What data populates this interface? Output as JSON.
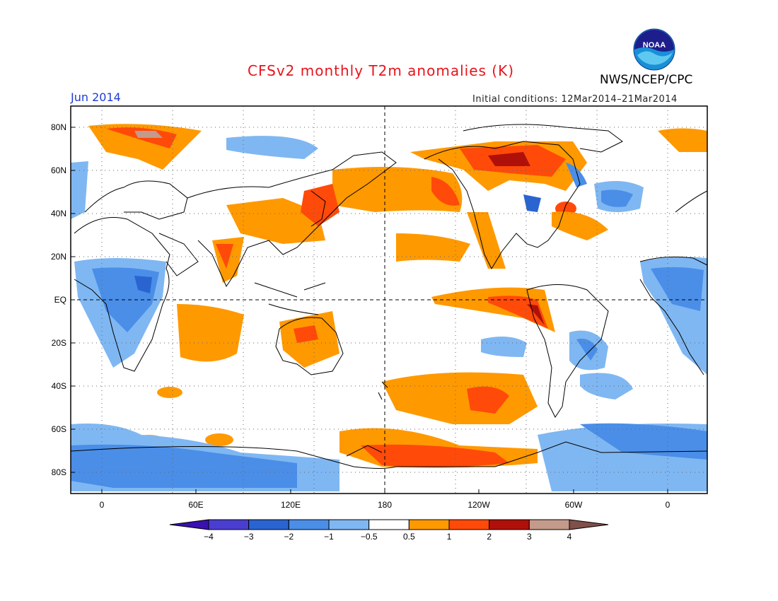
{
  "title": "CFSv2 monthly T2m anomalies (K)",
  "month": "Jun 2014",
  "initial_conditions": "Initial conditions: 12Mar2014–21Mar2014",
  "agency": "NWS/NCEP/CPC",
  "logo_text": "NOAA",
  "logo_icon": "noaa-logo",
  "lat_labels": [
    "80N",
    "60N",
    "40N",
    "20N",
    "EQ",
    "20S",
    "40S",
    "60S",
    "80S"
  ],
  "lon_labels": [
    "0",
    "60E",
    "120E",
    "180",
    "120W",
    "60W",
    "0"
  ],
  "colorbar": {
    "labels": [
      "−4",
      "−3",
      "−2",
      "−1",
      "−0.5",
      "0.5",
      "1",
      "2",
      "3",
      "4"
    ],
    "colors": [
      "#3a10b0",
      "#4a3ed0",
      "#2a64d0",
      "#4a8ee8",
      "#7fb7f2",
      "#ffffff",
      "#ff9900",
      "#ff4a0a",
      "#b0100a",
      "#c49a8a",
      "#80504a"
    ]
  }
}
